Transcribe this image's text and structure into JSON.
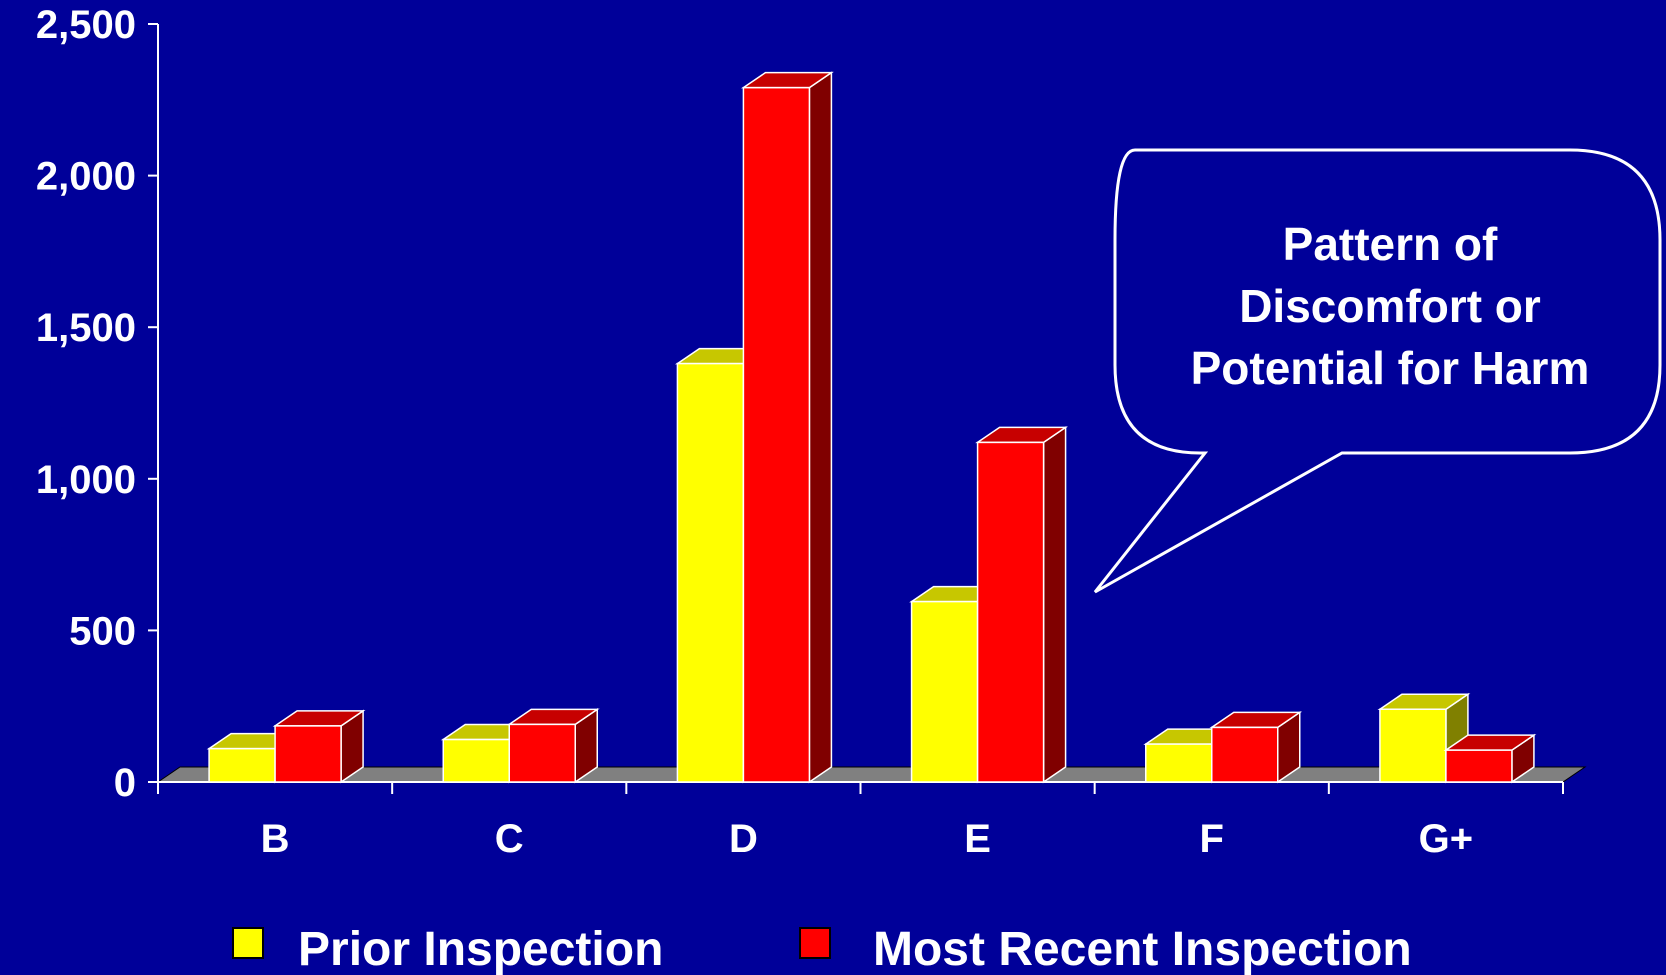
{
  "chart_data": {
    "type": "bar",
    "categories": [
      "B",
      "C",
      "D",
      "E",
      "F",
      "G+"
    ],
    "series": [
      {
        "name": "Prior Inspection",
        "values": [
          110,
          140,
          1380,
          595,
          125,
          240
        ],
        "color": "#ffff00"
      },
      {
        "name": "Most Recent Inspection",
        "values": [
          185,
          190,
          2290,
          1120,
          180,
          105
        ],
        "color": "#ff0000"
      }
    ],
    "yticks": [
      "0",
      "500",
      "1,000",
      "1,500",
      "2,000",
      "2,500"
    ],
    "ylim": [
      0,
      2500
    ],
    "grid": false,
    "legend_position": "bottom",
    "annotation": {
      "lines": [
        "Pattern of",
        "Discomfort or",
        "Potential for Harm"
      ]
    }
  },
  "colors": {
    "background": "#000099",
    "prior": "#ffff00",
    "recent": "#ff0000",
    "floor": "#808080"
  }
}
